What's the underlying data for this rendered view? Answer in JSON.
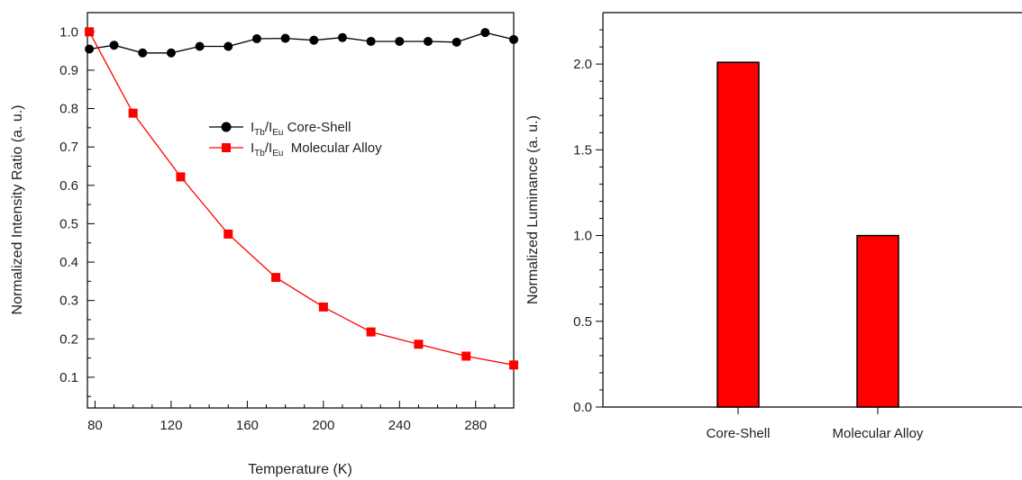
{
  "chart_data": [
    {
      "type": "line",
      "xlabel": "Temperature (K)",
      "ylabel": "Normalized Intensity Ratio (a. u.)",
      "xlim": [
        76,
        300
      ],
      "ylim": [
        0.02,
        1.05
      ],
      "x_ticks": [
        80,
        120,
        160,
        200,
        240,
        280
      ],
      "y_ticks": [
        0.1,
        0.2,
        0.3,
        0.4,
        0.5,
        0.6,
        0.7,
        0.8,
        0.9,
        1.0
      ],
      "y_tick_labels": [
        "0.1",
        "0.2",
        "0.3",
        "0.4",
        "0.5",
        "0.6",
        "0.7",
        "0.8",
        "0.9",
        "1.0"
      ],
      "legend_position": "center-right",
      "series": [
        {
          "legend": {
            "main1": "I",
            "sub1": "Tb",
            "slash": "/I",
            "sub2": "Eu",
            "rest": " Core-Shell"
          },
          "color": "#000000",
          "marker": "circle",
          "x": [
            77,
            90,
            105,
            120,
            135,
            150,
            165,
            180,
            195,
            210,
            225,
            240,
            255,
            270,
            285,
            300
          ],
          "y": [
            0.955,
            0.965,
            0.945,
            0.945,
            0.962,
            0.962,
            0.982,
            0.983,
            0.978,
            0.985,
            0.975,
            0.975,
            0.975,
            0.973,
            0.998,
            0.98
          ]
        },
        {
          "legend": {
            "main1": "I",
            "sub1": "Tb",
            "slash": "/I",
            "sub2": "Eu",
            "rest": "  Molecular Alloy"
          },
          "color": "#ff0000",
          "marker": "square",
          "x": [
            77,
            100,
            125,
            150,
            175,
            200,
            225,
            250,
            275,
            300
          ],
          "y": [
            1.0,
            0.788,
            0.622,
            0.473,
            0.36,
            0.283,
            0.218,
            0.186,
            0.155,
            0.132
          ]
        }
      ]
    },
    {
      "type": "bar",
      "ylabel": "Normalized Luminance (a. u.)",
      "ylim": [
        0,
        2.3
      ],
      "y_ticks": [
        0.0,
        0.5,
        1.0,
        1.5,
        2.0
      ],
      "y_tick_labels": [
        "0.0",
        "0.5",
        "1.0",
        "1.5",
        "2.0"
      ],
      "categories": [
        "Core-Shell",
        "Molecular Alloy"
      ],
      "values": [
        2.01,
        1.0
      ],
      "bar_color": "#ff0000"
    }
  ]
}
